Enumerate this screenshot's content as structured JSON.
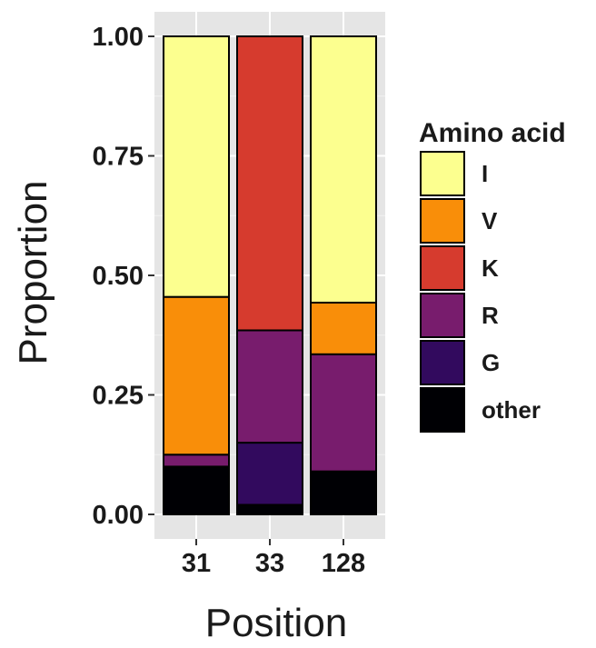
{
  "chart_data": {
    "type": "bar",
    "stacked": true,
    "categories": [
      "31",
      "33",
      "128"
    ],
    "xlabel": "Position",
    "ylabel": "Proportion",
    "ylim": [
      0,
      1
    ],
    "yticks": [
      "0.00",
      "0.25",
      "0.50",
      "0.75",
      "1.00"
    ],
    "grid": true,
    "legend": {
      "title": "Amino acid",
      "position": "right"
    },
    "series": [
      {
        "name": "other",
        "color": "#000004",
        "values": [
          0.1,
          0.02,
          0.09
        ]
      },
      {
        "name": "G",
        "color": "#320a5e",
        "values": [
          0.0,
          0.13,
          0.0
        ]
      },
      {
        "name": "R",
        "color": "#781c6d",
        "values": [
          0.025,
          0.235,
          0.245
        ]
      },
      {
        "name": "K",
        "color": "#d63b2e",
        "values": [
          0.0,
          0.615,
          0.0
        ]
      },
      {
        "name": "V",
        "color": "#f98e09",
        "values": [
          0.33,
          0.0,
          0.108
        ]
      },
      {
        "name": "I",
        "color": "#fcff8f",
        "values": [
          0.545,
          0.0,
          0.557
        ]
      }
    ],
    "legend_order": [
      "I",
      "V",
      "K",
      "R",
      "G",
      "other"
    ]
  }
}
